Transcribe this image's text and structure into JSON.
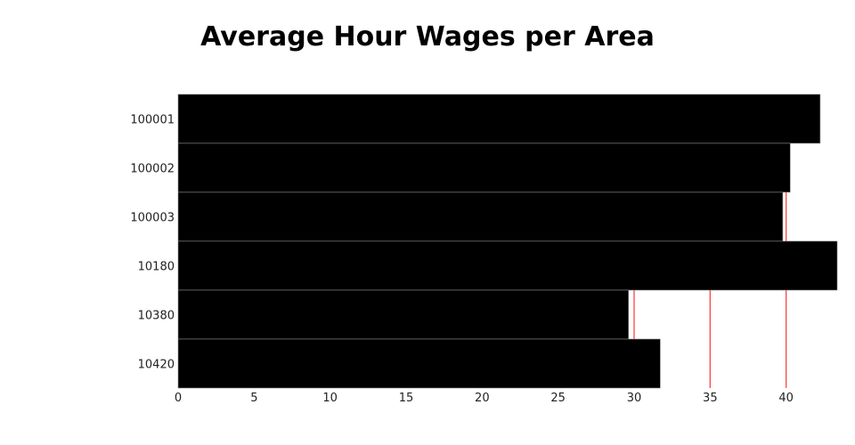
{
  "chart_data": {
    "type": "bar",
    "orientation": "horizontal",
    "title": "Average Hour Wages per Area",
    "categories": [
      "100001",
      "100002",
      "100003",
      "10180",
      "10380",
      "10420"
    ],
    "values": [
      42.24,
      40.27,
      39.78,
      43.36,
      29.63,
      31.72
    ],
    "xlim": [
      0,
      43.36
    ],
    "xticks": [
      0,
      5,
      10,
      15,
      20,
      25,
      30,
      35,
      40
    ],
    "xlabel": "",
    "ylabel": "",
    "bar_color": "#000000",
    "grid_color": "#ff4444",
    "grid": true
  }
}
